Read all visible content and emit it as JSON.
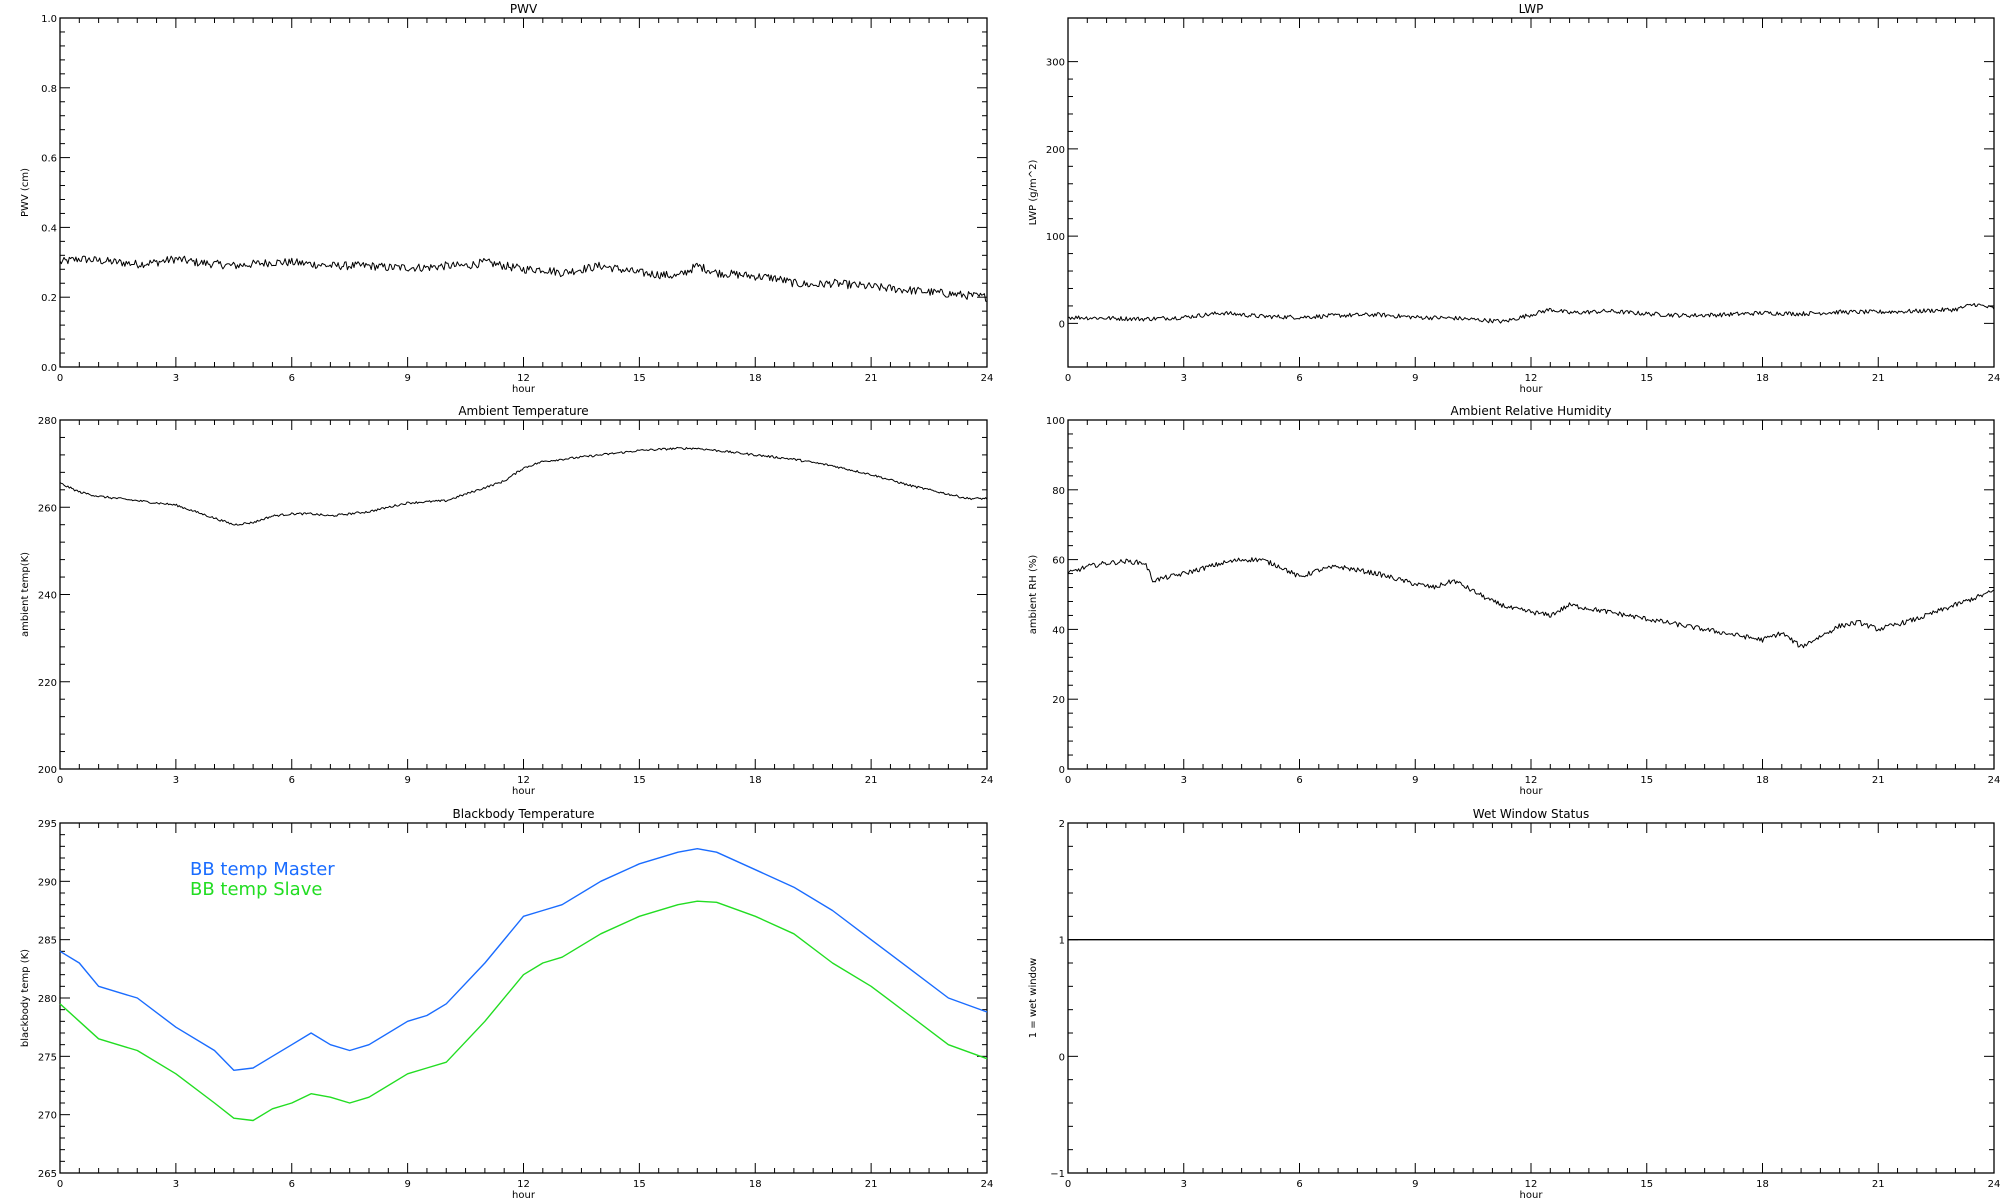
{
  "chart_data": [
    {
      "type": "line",
      "title": "PWV",
      "xlabel": "hour",
      "ylabel": "PWV (cm)",
      "xlim": [
        0,
        24
      ],
      "ylim": [
        0.0,
        1.0
      ],
      "xticks": [
        "0",
        "3",
        "6",
        "9",
        "12",
        "15",
        "18",
        "21",
        "24"
      ],
      "yticks": [
        "0.0",
        "0.2",
        "0.4",
        "0.6",
        "0.8",
        "1.0"
      ],
      "grid": false,
      "series": [
        {
          "color": "#000000",
          "noise": 0.012,
          "x": [
            0,
            0.5,
            1,
            1.5,
            2,
            2.5,
            3,
            3.5,
            4,
            4.5,
            5,
            5.5,
            6,
            6.5,
            7,
            7.5,
            8,
            8.5,
            9,
            9.5,
            10,
            10.5,
            11,
            11.5,
            12,
            12.5,
            13,
            13.5,
            14,
            14.5,
            15,
            15.5,
            16,
            16.5,
            17,
            17.5,
            18,
            18.5,
            19,
            19.5,
            20,
            20.5,
            21,
            21.5,
            22,
            22.5,
            23,
            23.5,
            24
          ],
          "y": [
            0.3,
            0.31,
            0.305,
            0.3,
            0.295,
            0.3,
            0.31,
            0.3,
            0.295,
            0.29,
            0.295,
            0.3,
            0.3,
            0.295,
            0.29,
            0.29,
            0.29,
            0.285,
            0.285,
            0.285,
            0.29,
            0.29,
            0.3,
            0.29,
            0.28,
            0.28,
            0.27,
            0.28,
            0.29,
            0.28,
            0.27,
            0.265,
            0.26,
            0.29,
            0.27,
            0.265,
            0.26,
            0.255,
            0.24,
            0.235,
            0.24,
            0.235,
            0.23,
            0.225,
            0.22,
            0.215,
            0.21,
            0.205,
            0.2
          ]
        }
      ]
    },
    {
      "type": "line",
      "title": "LWP",
      "xlabel": "hour",
      "ylabel": "LWP (g/m^2)",
      "xlim": [
        0,
        24
      ],
      "ylim": [
        -50,
        350
      ],
      "xticks": [
        "0",
        "3",
        "6",
        "9",
        "12",
        "15",
        "18",
        "21",
        "24"
      ],
      "yticks": [
        "0",
        "100",
        "200",
        "300"
      ],
      "grid": false,
      "series": [
        {
          "color": "#000000",
          "noise": 2.5,
          "x": [
            0,
            1,
            2,
            3,
            4,
            5,
            6,
            7,
            8,
            9,
            10,
            11,
            11.3,
            12,
            12.5,
            13,
            14,
            15,
            16,
            17,
            18,
            19,
            20,
            21,
            22,
            23,
            23.5,
            24
          ],
          "y": [
            7,
            6,
            5,
            7,
            12,
            8,
            7,
            9,
            10,
            7,
            6,
            3,
            2,
            10,
            16,
            12,
            14,
            11,
            9,
            10,
            12,
            11,
            13,
            13,
            14,
            16,
            22,
            17
          ]
        }
      ]
    },
    {
      "type": "line",
      "title": "Ambient Temperature",
      "xlabel": "hour",
      "ylabel": "ambient temp(K)",
      "xlim": [
        0,
        24
      ],
      "ylim": [
        200,
        280
      ],
      "xticks": [
        "0",
        "3",
        "6",
        "9",
        "12",
        "15",
        "18",
        "21",
        "24"
      ],
      "yticks": [
        "200",
        "220",
        "240",
        "260",
        "280"
      ],
      "grid": false,
      "series": [
        {
          "color": "#000000",
          "noise": 0.25,
          "x": [
            0,
            0.5,
            1,
            2,
            3,
            3.5,
            4,
            4.5,
            5,
            5.5,
            6,
            6.5,
            7,
            7.5,
            8,
            9,
            10,
            10.5,
            11,
            11.5,
            12,
            12.5,
            13,
            14,
            15,
            16,
            16.5,
            17,
            18,
            19,
            20,
            21,
            22,
            23,
            23.5,
            24
          ],
          "y": [
            265.5,
            263.5,
            262.5,
            261.5,
            260.5,
            259,
            257.5,
            256,
            256.5,
            258,
            258.5,
            258.5,
            258,
            258.5,
            259,
            261,
            261.5,
            263,
            264.5,
            266,
            269,
            270.5,
            271,
            272,
            273,
            273.5,
            273.5,
            273,
            272,
            271,
            269.5,
            267.5,
            265,
            263,
            262,
            262
          ]
        }
      ]
    },
    {
      "type": "line",
      "title": "Ambient Relative Humidity",
      "xlabel": "hour",
      "ylabel": "ambient RH (%)",
      "xlim": [
        0,
        24
      ],
      "ylim": [
        0,
        100
      ],
      "xticks": [
        "0",
        "3",
        "6",
        "9",
        "12",
        "15",
        "18",
        "21",
        "24"
      ],
      "yticks": [
        "0",
        "20",
        "40",
        "60",
        "80",
        "100"
      ],
      "grid": false,
      "series": [
        {
          "color": "#000000",
          "noise": 0.7,
          "x": [
            0,
            0.5,
            1,
            1.5,
            2,
            2.2,
            3,
            4,
            4.5,
            5,
            5.5,
            6,
            6.5,
            7,
            7.5,
            8,
            9,
            9.5,
            10,
            10.5,
            11,
            11.5,
            12,
            12.5,
            13,
            14,
            15,
            16,
            17,
            18,
            18.5,
            19,
            19.5,
            20,
            20.5,
            21,
            22,
            23,
            24
          ],
          "y": [
            56,
            58,
            59,
            59.5,
            59,
            54,
            56,
            59,
            60,
            60,
            58,
            55,
            57,
            58,
            57,
            56,
            53,
            52,
            54,
            51,
            48,
            46,
            45,
            44,
            47,
            45,
            43,
            41,
            39,
            37,
            39,
            35,
            38,
            41,
            42,
            40,
            43,
            47,
            51
          ]
        }
      ]
    },
    {
      "type": "line",
      "title": "Blackbody Temperature",
      "xlabel": "hour",
      "ylabel": "blackbody temp (K)",
      "xlim": [
        0,
        24
      ],
      "ylim": [
        265,
        295
      ],
      "xticks": [
        "0",
        "3",
        "6",
        "9",
        "12",
        "15",
        "18",
        "21",
        "24"
      ],
      "yticks": [
        "265",
        "270",
        "275",
        "280",
        "285",
        "290",
        "295"
      ],
      "grid": false,
      "legend_position": "top-left",
      "series": [
        {
          "name": "BB temp Master",
          "color": "#1a6cff",
          "noise": 0,
          "x": [
            0,
            0.5,
            1,
            1.5,
            2,
            3,
            4,
            4.5,
            5,
            5.5,
            6,
            6.5,
            7,
            7.5,
            8,
            9,
            9.5,
            10,
            11,
            12,
            12.5,
            13,
            14,
            15,
            16,
            16.5,
            17,
            18,
            19,
            20,
            21,
            22,
            23,
            24
          ],
          "y": [
            284,
            283,
            281,
            280.5,
            280,
            277.5,
            275.5,
            273.8,
            274,
            275,
            276,
            277,
            276,
            275.5,
            276,
            278,
            278.5,
            279.5,
            283,
            287,
            287.5,
            288,
            290,
            291.5,
            292.5,
            292.8,
            292.5,
            291,
            289.5,
            287.5,
            285,
            282.5,
            280,
            278.8
          ]
        },
        {
          "name": "BB temp Slave",
          "color": "#22dd22",
          "noise": 0,
          "x": [
            0,
            0.5,
            1,
            1.5,
            2,
            3,
            4,
            4.5,
            5,
            5.5,
            6,
            6.5,
            7,
            7.5,
            8,
            9,
            9.5,
            10,
            11,
            12,
            12.5,
            13,
            14,
            15,
            16,
            16.5,
            17,
            18,
            19,
            20,
            21,
            22,
            23,
            24
          ],
          "y": [
            279.5,
            278,
            276.5,
            276,
            275.5,
            273.5,
            271,
            269.7,
            269.5,
            270.5,
            271,
            271.8,
            271.5,
            271,
            271.5,
            273.5,
            274,
            274.5,
            278,
            282,
            283,
            283.5,
            285.5,
            287,
            288,
            288.3,
            288.2,
            287,
            285.5,
            283,
            281,
            278.5,
            276,
            274.8
          ]
        }
      ]
    },
    {
      "type": "line",
      "title": "Wet Window Status",
      "xlabel": "hour",
      "ylabel": "1 = wet window",
      "xlim": [
        0,
        24
      ],
      "ylim": [
        -1,
        2
      ],
      "xticks": [
        "0",
        "3",
        "6",
        "9",
        "12",
        "15",
        "18",
        "21",
        "24"
      ],
      "yticks": [
        "−1",
        "0",
        "1",
        "2"
      ],
      "grid": false,
      "series": [
        {
          "color": "#000000",
          "noise": 0,
          "x": [
            0,
            24
          ],
          "y": [
            1,
            1
          ]
        }
      ]
    }
  ]
}
